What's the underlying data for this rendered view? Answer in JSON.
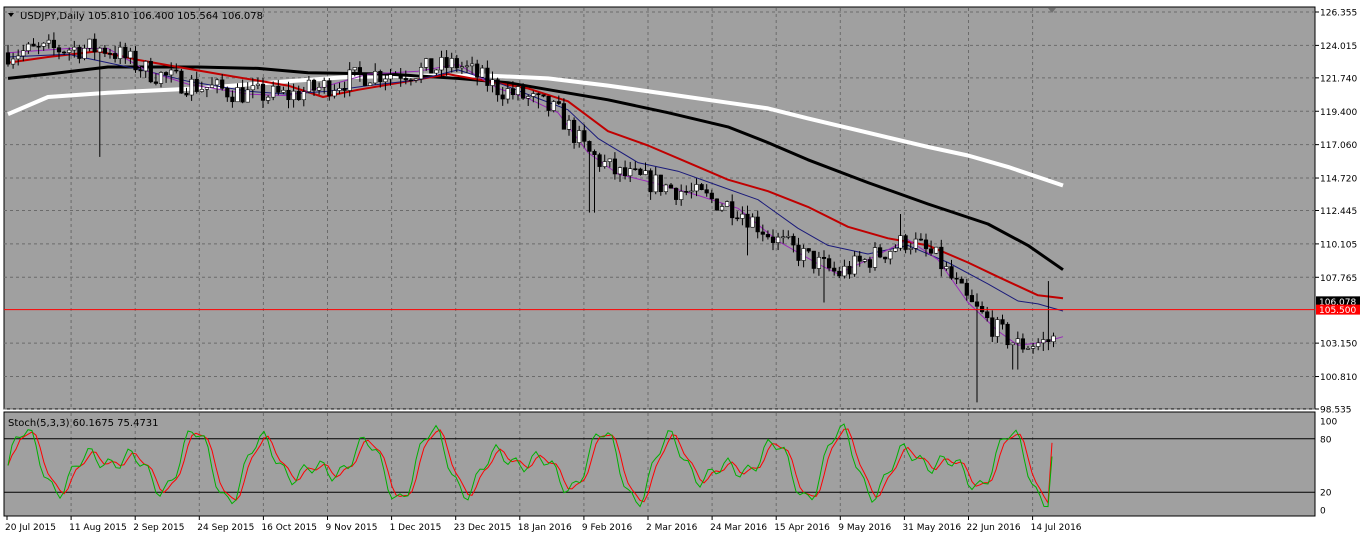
{
  "chart_data": {
    "type": "candlestick",
    "main": {
      "label": "USDJPY,Daily",
      "ohlc_text": "105.810 106.400 105.564 106.078",
      "ylim": [
        98.535,
        126.355
      ],
      "price_ticks": [
        "126.355",
        "124.015",
        "121.740",
        "119.400",
        "117.060",
        "114.720",
        "112.445",
        "110.105",
        "107.765",
        "106.078",
        "103.150",
        "100.810",
        "98.535"
      ],
      "current_price_label": "106.078",
      "hline_label": "105.500",
      "hline_value": 105.5,
      "hline_color": "#ff0000",
      "moving_averages": [
        {
          "color": "#ffffff",
          "points": [
            [
              0,
              119.2
            ],
            [
              40,
              120.4
            ],
            [
              100,
              120.7
            ],
            [
              190,
              121.0
            ],
            [
              280,
              121.5
            ],
            [
              340,
              121.8
            ],
            [
              420,
              121.9
            ],
            [
              480,
              121.9
            ],
            [
              540,
              121.7
            ],
            [
              600,
              121.2
            ],
            [
              660,
              120.6
            ],
            [
              720,
              120.0
            ],
            [
              760,
              119.6
            ],
            [
              800,
              118.9
            ],
            [
              860,
              117.9
            ],
            [
              920,
              116.9
            ],
            [
              960,
              116.3
            ],
            [
              1000,
              115.5
            ],
            [
              1055,
              114.2
            ]
          ]
        },
        {
          "color": "#000000",
          "points": [
            [
              0,
              121.7
            ],
            [
              40,
              122.0
            ],
            [
              100,
              122.5
            ],
            [
              190,
              122.5
            ],
            [
              250,
              122.4
            ],
            [
              300,
              122.1
            ],
            [
              380,
              122.0
            ],
            [
              450,
              121.7
            ],
            [
              500,
              121.4
            ],
            [
              550,
              120.8
            ],
            [
              600,
              120.2
            ],
            [
              660,
              119.3
            ],
            [
              720,
              118.3
            ],
            [
              760,
              117.2
            ],
            [
              800,
              116.0
            ],
            [
              860,
              114.4
            ],
            [
              920,
              112.9
            ],
            [
              980,
              111.5
            ],
            [
              1020,
              110.0
            ],
            [
              1055,
              108.3
            ]
          ]
        },
        {
          "color": "#c00000",
          "points": [
            [
              0,
              122.8
            ],
            [
              40,
              123.2
            ],
            [
              90,
              123.6
            ],
            [
              130,
              123.0
            ],
            [
              170,
              122.5
            ],
            [
              220,
              121.9
            ],
            [
              280,
              121.2
            ],
            [
              315,
              120.4
            ],
            [
              350,
              120.9
            ],
            [
              400,
              121.5
            ],
            [
              440,
              122.0
            ],
            [
              480,
              121.5
            ],
            [
              520,
              121.0
            ],
            [
              560,
              120.1
            ],
            [
              600,
              118.0
            ],
            [
              640,
              117.0
            ],
            [
              680,
              115.8
            ],
            [
              720,
              114.6
            ],
            [
              760,
              113.8
            ],
            [
              800,
              112.7
            ],
            [
              840,
              111.3
            ],
            [
              880,
              110.5
            ],
            [
              920,
              110.0
            ],
            [
              960,
              108.8
            ],
            [
              990,
              107.8
            ],
            [
              1030,
              106.5
            ],
            [
              1055,
              106.3
            ]
          ]
        },
        {
          "color": "#1a1a7a",
          "points": [
            [
              0,
              123.2
            ],
            [
              60,
              123.4
            ],
            [
              100,
              122.8
            ],
            [
              140,
              122.2
            ],
            [
              180,
              121.5
            ],
            [
              240,
              120.8
            ],
            [
              280,
              120.6
            ],
            [
              320,
              120.8
            ],
            [
              360,
              121.2
            ],
            [
              410,
              121.6
            ],
            [
              450,
              122.3
            ],
            [
              490,
              121.4
            ],
            [
              530,
              120.3
            ],
            [
              560,
              119.5
            ],
            [
              590,
              117.5
            ],
            [
              630,
              115.8
            ],
            [
              670,
              115.2
            ],
            [
              710,
              114.2
            ],
            [
              750,
              113.2
            ],
            [
              790,
              111.2
            ],
            [
              820,
              110.0
            ],
            [
              860,
              109.4
            ],
            [
              900,
              110.0
            ],
            [
              940,
              108.8
            ],
            [
              980,
              107.3
            ],
            [
              1010,
              106.1
            ],
            [
              1030,
              105.9
            ],
            [
              1055,
              105.4
            ]
          ]
        },
        {
          "color": "#9a2aba",
          "points": [
            [
              0,
              123.5
            ],
            [
              60,
              123.8
            ],
            [
              100,
              123.8
            ],
            [
              140,
              122.2
            ],
            [
              180,
              121.3
            ],
            [
              240,
              120.6
            ],
            [
              280,
              120.5
            ],
            [
              320,
              121.2
            ],
            [
              360,
              122.0
            ],
            [
              410,
              122.2
            ],
            [
              450,
              122.7
            ],
            [
              490,
              121.0
            ],
            [
              520,
              120.3
            ],
            [
              550,
              119.3
            ],
            [
              580,
              116.5
            ],
            [
              610,
              115.0
            ],
            [
              650,
              114.3
            ],
            [
              690,
              113.5
            ],
            [
              730,
              112.6
            ],
            [
              770,
              110.3
            ],
            [
              810,
              108.7
            ],
            [
              830,
              108.0
            ],
            [
              860,
              109.0
            ],
            [
              900,
              110.4
            ],
            [
              930,
              109.0
            ],
            [
              960,
              106.0
            ],
            [
              990,
              104.0
            ],
            [
              1010,
              103.0
            ],
            [
              1035,
              103.2
            ],
            [
              1055,
              103.6
            ]
          ]
        }
      ]
    },
    "stoch": {
      "label": "Stoch(5,3,3) 60.1675 75.4731",
      "ylim": [
        0,
        100
      ],
      "ticks": [
        "100",
        "80",
        "20",
        "0"
      ],
      "levels": [
        80,
        20
      ]
    },
    "x_ticks": [
      "20 Jul 2015",
      "11 Aug 2015",
      "2 Sep 2015",
      "24 Sep 2015",
      "16 Oct 2015",
      "9 Nov 2015",
      "1 Dec 2015",
      "23 Dec 2015",
      "18 Jan 2016",
      "9 Feb 2016",
      "2 Mar 2016",
      "24 Mar 2016",
      "15 Apr 2016",
      "9 May 2016",
      "31 May 2016",
      "22 Jun 2016",
      "14 Jul 2016"
    ],
    "colors": {
      "background": "#a0a0a0",
      "grid": "#6b6b6b",
      "bull": "#ffffff",
      "bear": "#000000",
      "stoch_main": "#00b000",
      "stoch_signal": "#ff0000"
    }
  }
}
